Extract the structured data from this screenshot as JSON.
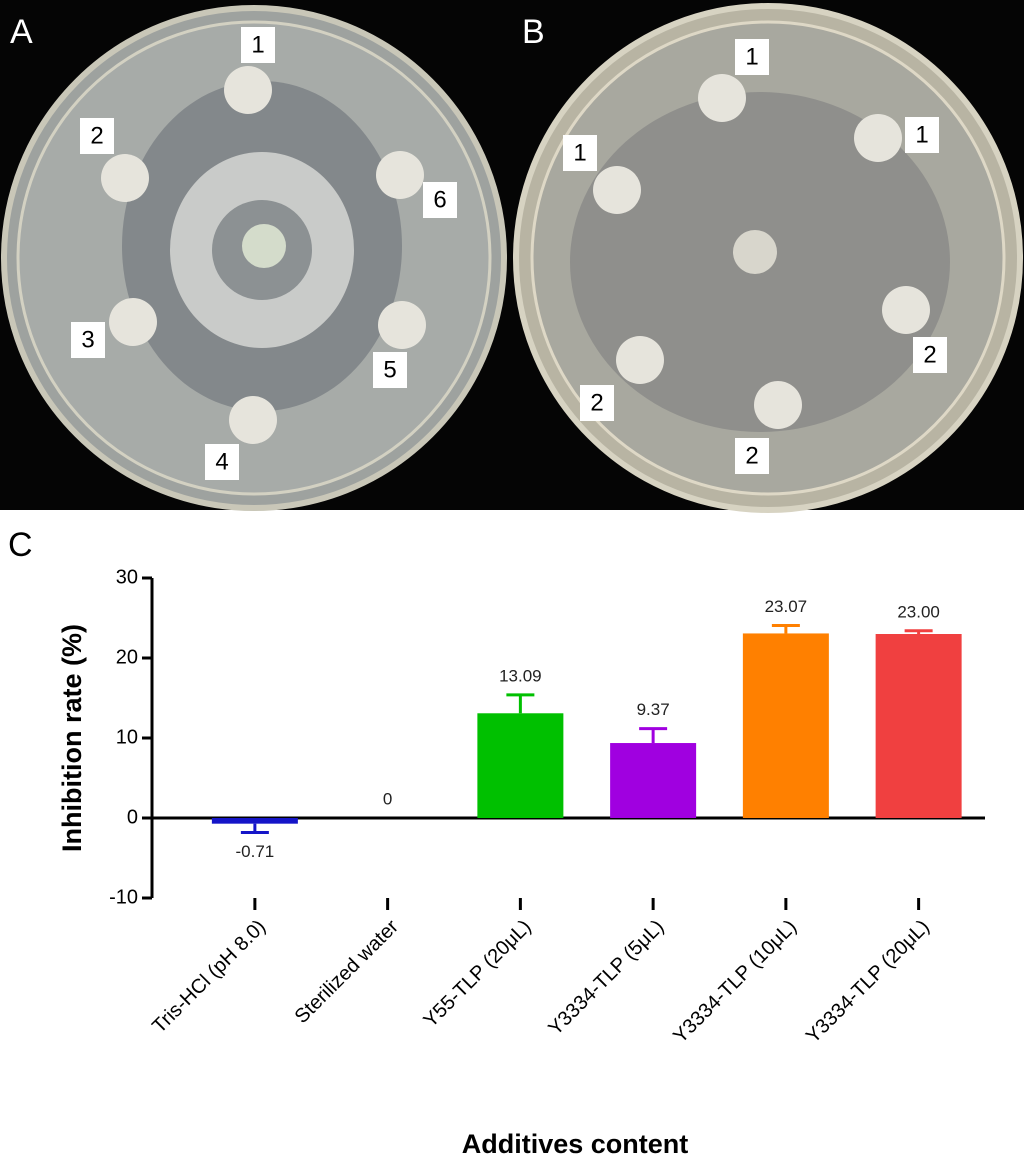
{
  "panels": {
    "A": {
      "label": "A",
      "discs": [
        "1",
        "2",
        "6",
        "3",
        "5",
        "4"
      ]
    },
    "B": {
      "label": "B",
      "discs": [
        "1",
        "1",
        "1",
        "2",
        "2",
        "2"
      ]
    }
  },
  "chart_data": {
    "type": "bar",
    "panel_label": "C",
    "x_label": "Additives content",
    "y_label": "Inhibition rate (%)",
    "categories": [
      "Tris-HCl (pH 8.0)",
      "Sterilized water",
      "Y55-TLP (20μL)",
      "Y3334-TLP (5μL)",
      "Y3334-TLP (10μL)",
      "Y3334-TLP (20μL)"
    ],
    "values": [
      -0.71,
      0,
      13.09,
      9.37,
      23.07,
      23.0
    ],
    "value_labels": [
      "-0.71",
      "0",
      "13.09",
      "9.37",
      "23.07",
      "23.00"
    ],
    "errors": [
      1.1,
      0,
      2.3,
      1.8,
      1.0,
      0.4
    ],
    "colors": [
      "#1515c8",
      "#000000",
      "#00c000",
      "#a000e0",
      "#ff8000",
      "#f04040"
    ],
    "ylim": [
      -10,
      30
    ],
    "yticks": [
      -10,
      0,
      10,
      20,
      30
    ]
  }
}
